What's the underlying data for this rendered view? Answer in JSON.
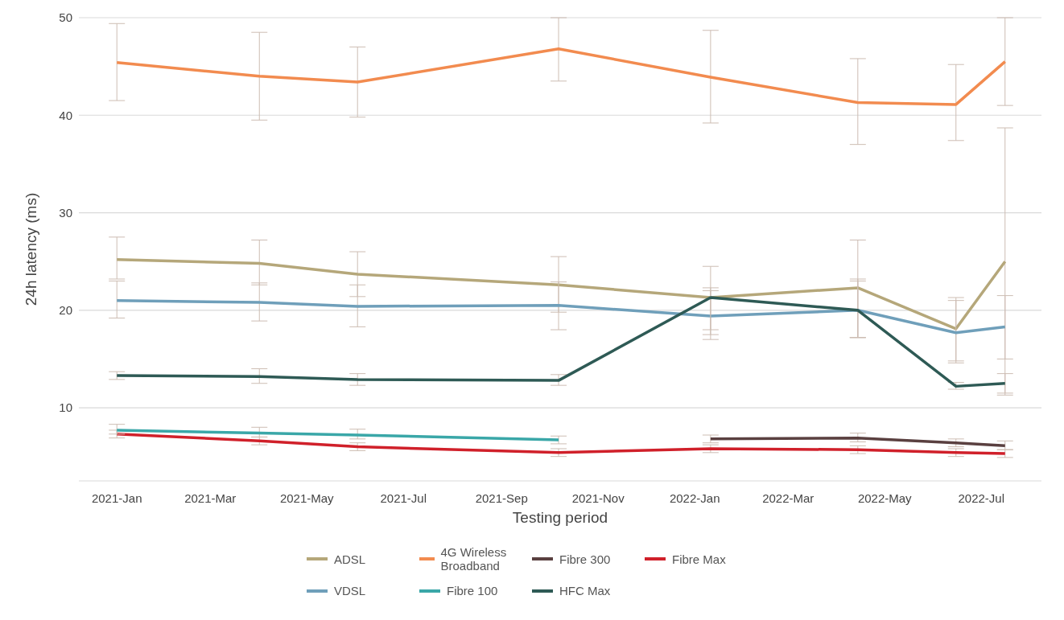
{
  "chart_data": {
    "type": "line",
    "xlabel": "Testing period",
    "ylabel": "24h latency (ms)",
    "x": [
      "2021-01-01",
      "2021-04-01",
      "2021-06-02",
      "2021-10-07",
      "2022-01-11",
      "2022-04-14",
      "2022-06-15",
      "2022-07-16"
    ],
    "xlim": [
      "2020-12-08",
      "2022-08-08"
    ],
    "xticks": [
      {
        "value": "2021-01-01",
        "label": "2021-Jan"
      },
      {
        "value": "2021-03-01",
        "label": "2021-Mar"
      },
      {
        "value": "2021-05-01",
        "label": "2021-May"
      },
      {
        "value": "2021-07-01",
        "label": "2021-Jul"
      },
      {
        "value": "2021-09-01",
        "label": "2021-Sep"
      },
      {
        "value": "2021-11-01",
        "label": "2021-Nov"
      },
      {
        "value": "2022-01-01",
        "label": "2022-Jan"
      },
      {
        "value": "2022-03-01",
        "label": "2022-Mar"
      },
      {
        "value": "2022-05-01",
        "label": "2022-May"
      },
      {
        "value": "2022-07-01",
        "label": "2022-Jul"
      }
    ],
    "ylim": [
      2.5,
      50
    ],
    "yticks": [
      10,
      20,
      30,
      40,
      50
    ],
    "grid": "y",
    "legend": "bottom",
    "marker": "none",
    "line_style": "solid",
    "series": [
      {
        "name": "ADSL",
        "color": "#b5a77a",
        "values": [
          25.2,
          24.8,
          23.7,
          22.6,
          21.3,
          22.3,
          18.1,
          25.0
        ],
        "errors": [
          [
            23.2,
            27.5
          ],
          [
            22.6,
            27.2
          ],
          [
            21.4,
            26.0
          ],
          [
            19.8,
            25.5
          ],
          [
            18.0,
            24.5
          ],
          [
            17.2,
            27.2
          ],
          [
            14.8,
            21.3
          ],
          [
            11.3,
            38.7
          ]
        ]
      },
      {
        "name": "4G Wireless Broadband",
        "color": "#f28b4f",
        "values": [
          45.4,
          44.0,
          43.4,
          46.8,
          43.9,
          41.3,
          41.1,
          45.5
        ],
        "errors": [
          [
            41.5,
            49.4
          ],
          [
            39.5,
            48.5
          ],
          [
            39.8,
            47.0
          ],
          [
            43.5,
            50.0
          ],
          [
            39.2,
            48.7
          ],
          [
            37.0,
            45.8
          ],
          [
            37.4,
            45.2
          ],
          [
            41.0,
            50.0
          ]
        ]
      },
      {
        "name": "Fibre 300",
        "color": "#5a4040",
        "values": [
          null,
          null,
          null,
          null,
          6.8,
          6.9,
          6.4,
          6.1
        ],
        "errors": [
          null,
          null,
          null,
          null,
          [
            6.4,
            7.2
          ],
          [
            6.5,
            7.4
          ],
          [
            6.0,
            6.8
          ],
          [
            5.7,
            6.6
          ]
        ]
      },
      {
        "name": "Fibre Max",
        "color": "#d0202a",
        "values": [
          7.3,
          6.6,
          6.0,
          5.4,
          5.8,
          5.7,
          5.4,
          5.3
        ],
        "errors": [
          [
            6.9,
            7.7
          ],
          [
            6.2,
            7.0
          ],
          [
            5.6,
            6.4
          ],
          [
            5.0,
            5.8
          ],
          [
            5.4,
            6.2
          ],
          [
            5.3,
            6.1
          ],
          [
            5.0,
            5.8
          ],
          [
            4.9,
            5.7
          ]
        ]
      },
      {
        "name": "VDSL",
        "color": "#6f9fba",
        "values": [
          21.0,
          20.8,
          20.4,
          20.5,
          19.4,
          20.0,
          17.7,
          18.3
        ],
        "errors": [
          [
            19.2,
            23.0
          ],
          [
            18.9,
            22.8
          ],
          [
            18.3,
            22.6
          ],
          [
            18.0,
            22.9
          ],
          [
            17.0,
            22.0
          ],
          [
            17.2,
            23.2
          ],
          [
            14.6,
            21.0
          ],
          [
            15.0,
            21.5
          ]
        ]
      },
      {
        "name": "Fibre 100",
        "color": "#3aa7a8",
        "values": [
          7.7,
          7.4,
          7.2,
          6.7,
          null,
          null,
          null,
          null
        ],
        "errors": [
          [
            7.3,
            8.3
          ],
          [
            7.0,
            8.0
          ],
          [
            6.8,
            7.8
          ],
          [
            6.3,
            7.1
          ],
          null,
          null,
          null,
          null
        ]
      },
      {
        "name": "HFC Max",
        "color": "#2e5a55",
        "values": [
          13.3,
          13.2,
          12.9,
          12.8,
          21.3,
          20.0,
          12.2,
          12.5
        ],
        "errors": [
          [
            12.9,
            13.7
          ],
          [
            12.5,
            14.0
          ],
          [
            12.3,
            13.5
          ],
          [
            12.3,
            13.4
          ],
          [
            17.5,
            22.3
          ],
          [
            17.2,
            23.0
          ],
          [
            11.9,
            12.6
          ],
          [
            11.5,
            13.5
          ]
        ]
      }
    ]
  }
}
